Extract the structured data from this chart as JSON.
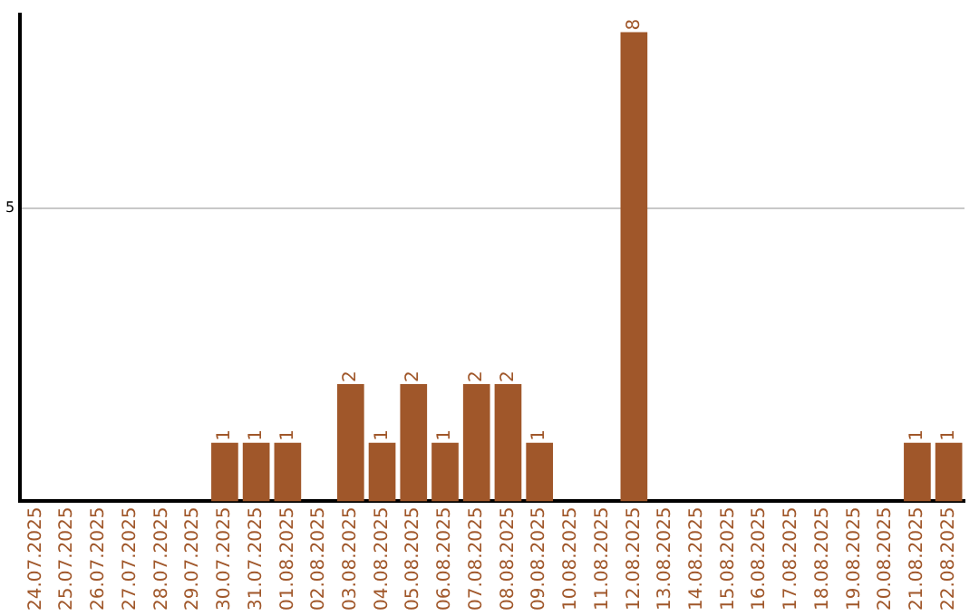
{
  "chart_data": {
    "type": "bar",
    "categories": [
      "24.07.2025",
      "25.07.2025",
      "26.07.2025",
      "27.07.2025",
      "28.07.2025",
      "29.07.2025",
      "30.07.2025",
      "31.07.2025",
      "01.08.2025",
      "02.08.2025",
      "03.08.2025",
      "04.08.2025",
      "05.08.2025",
      "06.08.2025",
      "07.08.2025",
      "08.08.2025",
      "09.08.2025",
      "10.08.2025",
      "11.08.2025",
      "12.08.2025",
      "13.08.2025",
      "14.08.2025",
      "15.08.2025",
      "16.08.2025",
      "17.08.2025",
      "18.08.2025",
      "19.08.2025",
      "20.08.2025",
      "21.08.2025",
      "22.08.2025"
    ],
    "values": [
      0,
      0,
      0,
      0,
      0,
      0,
      1,
      1,
      1,
      0,
      2,
      1,
      2,
      1,
      2,
      2,
      1,
      0,
      0,
      8,
      0,
      0,
      0,
      0,
      0,
      0,
      0,
      0,
      1,
      1
    ],
    "value_labels": [
      null,
      null,
      null,
      null,
      null,
      null,
      "1",
      "1",
      "1",
      null,
      "2",
      "1",
      "2",
      "1",
      "2",
      "2",
      "1",
      null,
      null,
      "8",
      null,
      null,
      null,
      null,
      null,
      null,
      null,
      null,
      "1",
      "1"
    ],
    "color": "#a0572a",
    "ylim": [
      0,
      8.3
    ],
    "yticks": [
      5
    ],
    "grid": "y",
    "legend": false
  }
}
